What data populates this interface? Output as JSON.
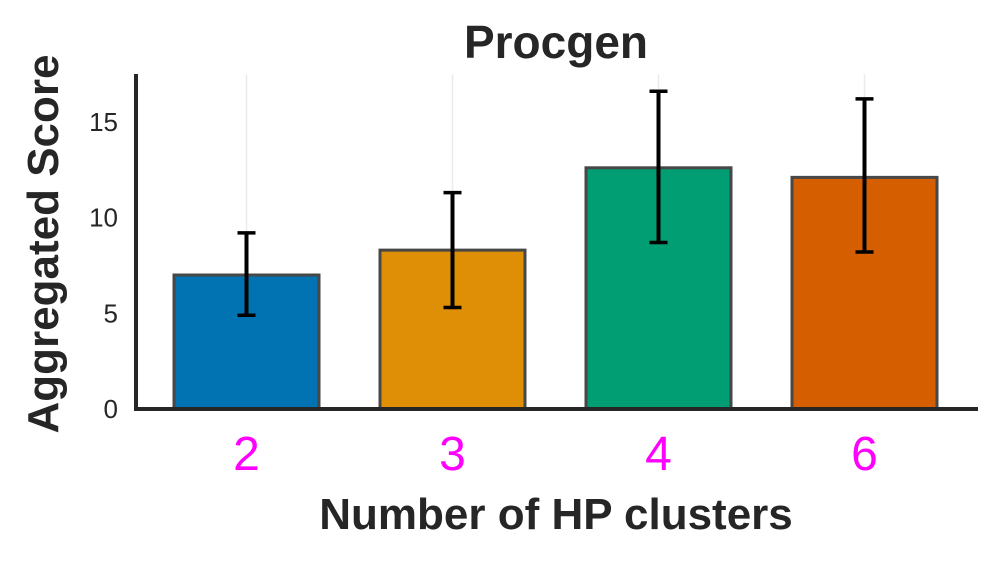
{
  "chart_data": {
    "type": "bar",
    "title": "Procgen",
    "xlabel": "Number of HP clusters",
    "ylabel": "Aggregated Score",
    "categories": [
      "2",
      "3",
      "4",
      "6"
    ],
    "values": [
      7.0,
      8.3,
      12.6,
      12.1
    ],
    "error_low": [
      4.9,
      5.3,
      8.7,
      8.2
    ],
    "error_high": [
      9.2,
      11.3,
      16.6,
      16.2
    ],
    "bar_colors": [
      "#0173b2",
      "#de8f05",
      "#029e73",
      "#d55e00"
    ],
    "xtick_color": "#ff00ff",
    "ylim": [
      0,
      17.5
    ],
    "yticks": [
      0,
      5,
      10,
      15
    ],
    "grid": "vertical-light"
  }
}
